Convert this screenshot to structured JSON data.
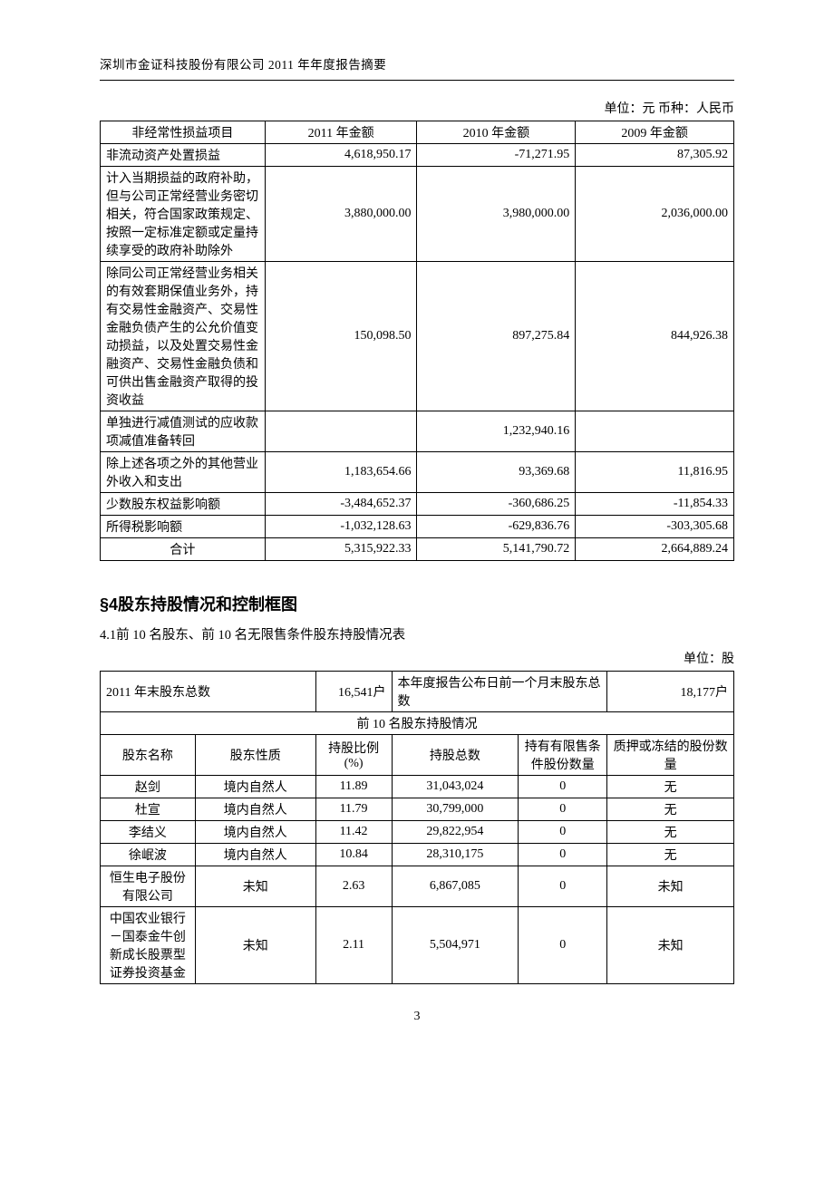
{
  "header": "深圳市金证科技股份有限公司 2011 年年度报告摘要",
  "table1": {
    "unit_line": "单位：元 币种：人民币",
    "headers": [
      "非经常性损益项目",
      "2011 年金额",
      "2010 年金额",
      "2009 年金额"
    ],
    "rows": [
      {
        "label": "非流动资产处置损益",
        "c2011": "4,618,950.17",
        "c2010": "-71,271.95",
        "c2009": "87,305.92"
      },
      {
        "label": "计入当期损益的政府补助，但与公司正常经营业务密切相关，符合国家政策规定、按照一定标准定额或定量持续享受的政府补助除外",
        "c2011": "3,880,000.00",
        "c2010": "3,980,000.00",
        "c2009": "2,036,000.00"
      },
      {
        "label": "除同公司正常经营业务相关的有效套期保值业务外，持有交易性金融资产、交易性金融负债产生的公允价值变动损益，以及处置交易性金融资产、交易性金融负债和可供出售金融资产取得的投资收益",
        "c2011": "150,098.50",
        "c2010": "897,275.84",
        "c2009": "844,926.38"
      },
      {
        "label": "单独进行减值测试的应收款项减值准备转回",
        "c2011": "",
        "c2010": "1,232,940.16",
        "c2009": ""
      },
      {
        "label": "除上述各项之外的其他营业外收入和支出",
        "c2011": "1,183,654.66",
        "c2010": "93,369.68",
        "c2009": "11,816.95"
      },
      {
        "label": "少数股东权益影响额",
        "c2011": "-3,484,652.37",
        "c2010": "-360,686.25",
        "c2009": "-11,854.33"
      },
      {
        "label": "所得税影响额",
        "c2011": "-1,032,128.63",
        "c2010": "-629,836.76",
        "c2009": "-303,305.68"
      }
    ],
    "total_row": {
      "label": "合计",
      "c2011": "5,315,922.33",
      "c2010": "5,141,790.72",
      "c2009": "2,664,889.24"
    }
  },
  "section4": {
    "title": "§4股东持股情况和控制框图",
    "subtitle": "4.1前 10 名股东、前 10 名无限售条件股东持股情况表",
    "unit_line": "单位：股",
    "top_row": {
      "label1": "2011 年末股东总数",
      "value1": "16,541户",
      "label2": "本年度报告公布日前一个月末股东总数",
      "value2": "18,177户"
    },
    "sub_header": "前 10 名股东持股情况",
    "columns": [
      "股东名称",
      "股东性质",
      "持股比例(%)",
      "持股总数",
      "持有有限售条件股份数量",
      "质押或冻结的股份数量"
    ],
    "rows": [
      {
        "name": "赵剑",
        "nature": "境内自然人",
        "pct": "11.89",
        "total": "31,043,024",
        "limited": "0",
        "pledge": "无"
      },
      {
        "name": "杜宣",
        "nature": "境内自然人",
        "pct": "11.79",
        "total": "30,799,000",
        "limited": "0",
        "pledge": "无"
      },
      {
        "name": "李结义",
        "nature": "境内自然人",
        "pct": "11.42",
        "total": "29,822,954",
        "limited": "0",
        "pledge": "无"
      },
      {
        "name": "徐岷波",
        "nature": "境内自然人",
        "pct": "10.84",
        "total": "28,310,175",
        "limited": "0",
        "pledge": "无"
      },
      {
        "name": "恒生电子股份有限公司",
        "nature": "未知",
        "pct": "2.63",
        "total": "6,867,085",
        "limited": "0",
        "pledge": "未知"
      },
      {
        "name": "中国农业银行－国泰金牛创新成长股票型证券投资基金",
        "nature": "未知",
        "pct": "2.11",
        "total": "5,504,971",
        "limited": "0",
        "pledge": "未知"
      }
    ]
  },
  "page_number": "3"
}
